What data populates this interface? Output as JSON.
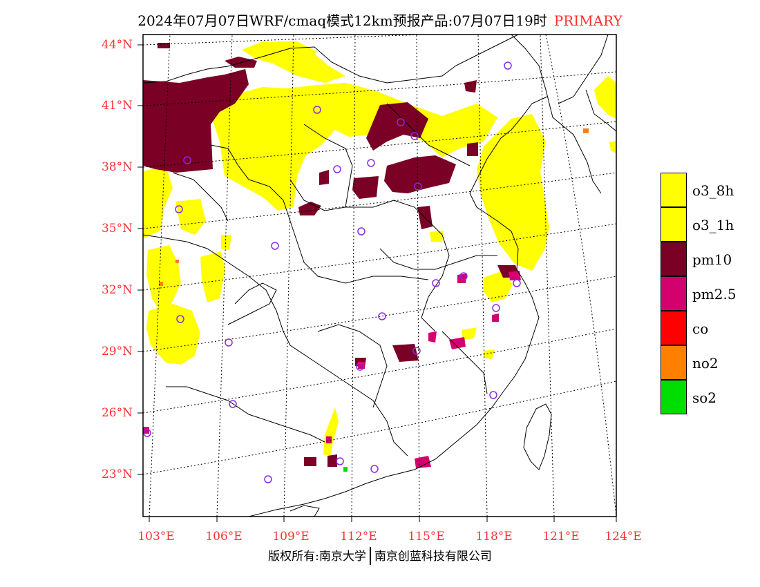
{
  "title": {
    "text": "2024年07月07日WRF/cmaq模式12km预报产品:07月07日19时",
    "tag": "PRIMARY"
  },
  "map": {
    "lat_labels": [
      "44°N",
      "41°N",
      "38°N",
      "35°N",
      "32°N",
      "29°N",
      "26°N",
      "23°N"
    ],
    "lon_labels": [
      "103°E",
      "106°E",
      "109°E",
      "112°E",
      "115°E",
      "118°E",
      "121°E",
      "124°E"
    ]
  },
  "legend": [
    {
      "label": "o3_8h",
      "color": "#ffff00"
    },
    {
      "label": "o3_1h",
      "color": "#ffff00"
    },
    {
      "label": "pm10",
      "color": "#7a0026"
    },
    {
      "label": "pm2.5",
      "color": "#d4006e"
    },
    {
      "label": "co",
      "color": "#ff0000"
    },
    {
      "label": "no2",
      "color": "#ff7f00"
    },
    {
      "label": "so2",
      "color": "#00dd00"
    }
  ],
  "colors": {
    "o3": "#ffff00",
    "pm10": "#7a0026",
    "pm25": "#d4006e",
    "no2": "#ff7f00",
    "so2": "#00dd00",
    "station_marker": "#8a2be2",
    "axis_label": "#ff3030"
  },
  "footer": {
    "left": "版权所有:南京大学",
    "right": "南京创蓝科技有限公司"
  }
}
